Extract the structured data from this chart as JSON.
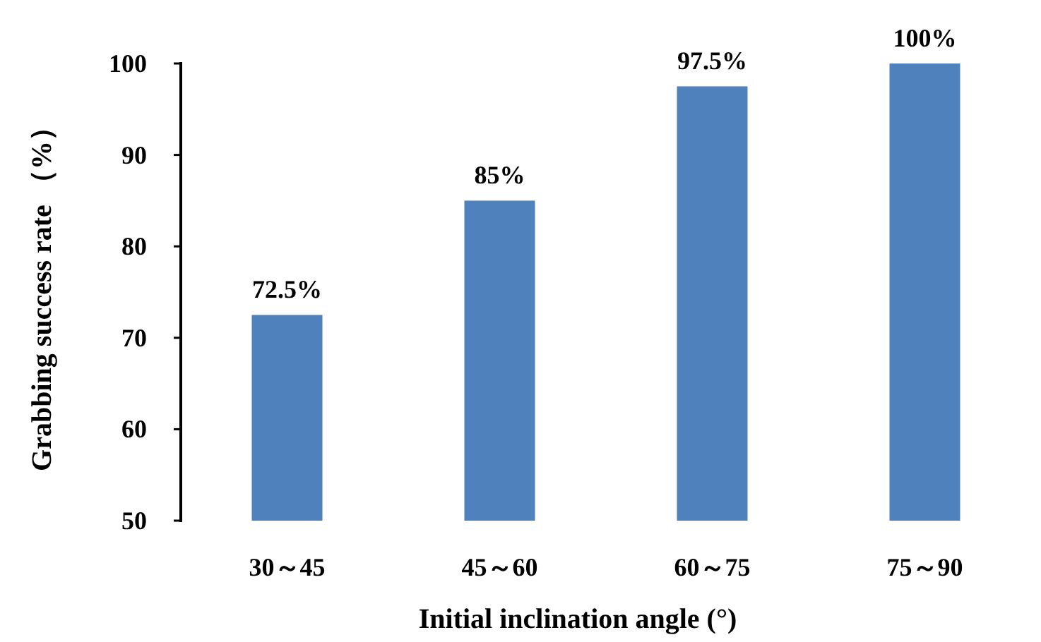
{
  "chart_data": {
    "type": "bar",
    "xlabel": "Initial inclination angle (°)",
    "ylabel": "Grabbing success rate （%）",
    "categories": [
      "30～45",
      "45～60",
      "60～75",
      "75～90"
    ],
    "values": [
      72.5,
      85,
      97.5,
      100
    ],
    "value_labels": [
      "72.5%",
      "85%",
      "97.5%",
      "100%"
    ],
    "color": "#4f81bd",
    "ylim": [
      50,
      100
    ],
    "yticks": [
      50,
      60,
      70,
      80,
      90,
      100
    ],
    "grid": false
  }
}
